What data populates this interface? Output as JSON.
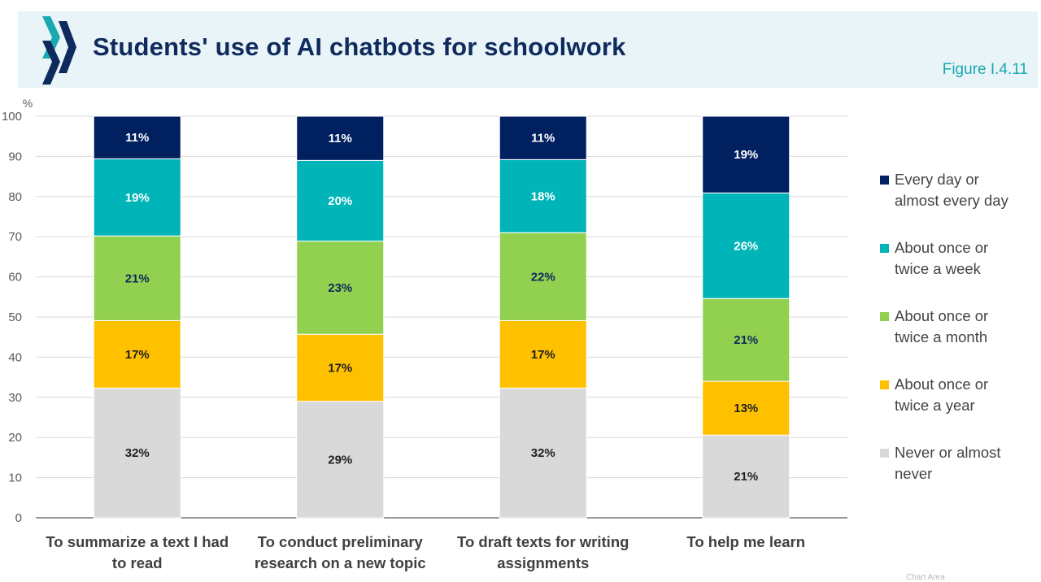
{
  "header": {
    "title": "Students' use of AI chatbots for schoolwork",
    "figure_number": "Figure I.4.11",
    "logo_icon": "chevron-logo-icon"
  },
  "chart_area_tag": "Chart Area",
  "colors": {
    "header_bg": "#e9f4f8",
    "title": "#0f2a5c",
    "figure_number": "#19a9b0"
  },
  "chart_data": {
    "type": "bar",
    "stacked": true,
    "ylabel": "%",
    "ylim": [
      0,
      100
    ],
    "yticks": [
      0,
      10,
      20,
      30,
      40,
      50,
      60,
      70,
      80,
      90,
      100
    ],
    "grid": true,
    "legend_position": "right",
    "categories": [
      [
        "To summarize a text I had",
        "to read"
      ],
      [
        "To conduct preliminary",
        "research on a new topic"
      ],
      [
        "To draft texts for writing",
        "assignments"
      ],
      [
        "To help me learn"
      ]
    ],
    "series": [
      {
        "name": "Never or almost never",
        "legend_lines": [
          "Never or almost",
          "never"
        ],
        "color": "#d9d9d9",
        "label_color": "#1f1f1f",
        "values": [
          32.3,
          29.0,
          32.3,
          20.6
        ],
        "labels": [
          "32%",
          "29%",
          "32%",
          "21%"
        ]
      },
      {
        "name": "About once or twice a year",
        "legend_lines": [
          "About once or",
          "twice a year"
        ],
        "color": "#ffc000",
        "label_color": "#1f1f1f",
        "values": [
          16.8,
          16.7,
          16.8,
          13.4
        ],
        "labels": [
          "17%",
          "17%",
          "17%",
          "13%"
        ]
      },
      {
        "name": "About once or twice a month",
        "legend_lines": [
          "About once or",
          "twice a month"
        ],
        "color": "#92d050",
        "label_color": "#0f2a5c",
        "values": [
          21.1,
          23.2,
          21.9,
          20.6
        ],
        "labels": [
          "21%",
          "23%",
          "22%",
          "21%"
        ]
      },
      {
        "name": "About once or twice a week",
        "legend_lines": [
          "About once or",
          "twice a week"
        ],
        "color": "#00b4b8",
        "label_color": "#ffffff",
        "values": [
          19.2,
          20.1,
          18.2,
          26.3
        ],
        "labels": [
          "19%",
          "20%",
          "18%",
          "26%"
        ]
      },
      {
        "name": "Every day or almost every day",
        "legend_lines": [
          "Every day or",
          "almost every day"
        ],
        "color": "#002060",
        "label_color": "#ffffff",
        "values": [
          10.6,
          11.0,
          10.8,
          19.1
        ],
        "labels": [
          "11%",
          "11%",
          "11%",
          "19%"
        ]
      }
    ]
  }
}
